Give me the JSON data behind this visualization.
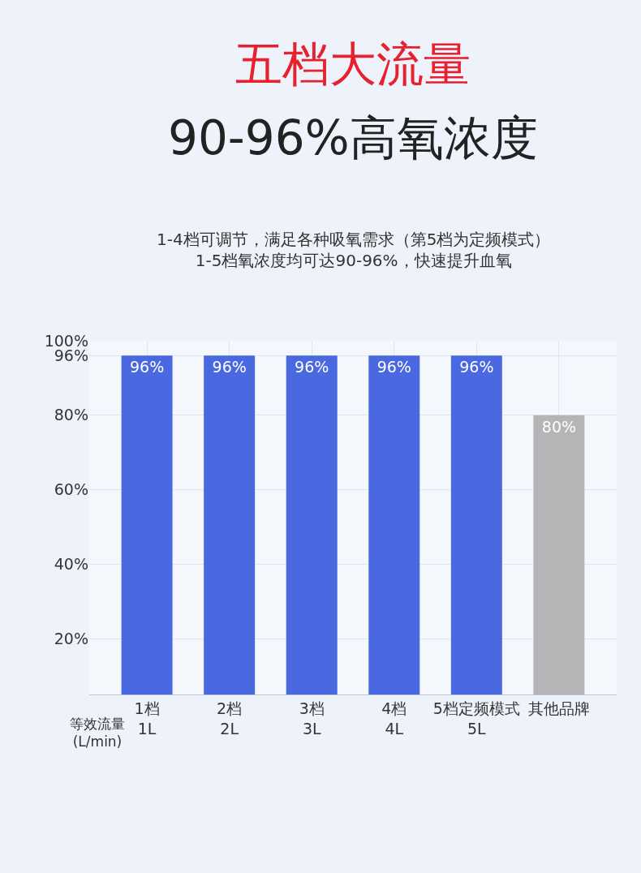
{
  "chart_data": {
    "type": "bar",
    "title": "五档大流量",
    "subtitle": "90-96%高氧浓度",
    "annotations": [
      "1-4档可调节，满足各种吸氧需求（第5档为定频模式）\n1-5档氧浓度均可达90-96%，快速提升血氧",
      "等效流量\n(L/min)"
    ],
    "categories": [
      "1档\n1L",
      "2档\n2L",
      "3档\n3L",
      "4档\n4L",
      "5档定频模式\n5L",
      "其他品牌"
    ],
    "values": [
      96,
      96,
      96,
      96,
      96,
      80
    ],
    "colors": [
      "#4a68df",
      "#4a68df",
      "#4a68df",
      "#4a68df",
      "#4a68df",
      "#b5b5b8"
    ],
    "value_labels": [
      "96%",
      "96%",
      "96%",
      "96%",
      "96%",
      "80%"
    ],
    "ylim": [
      5,
      100
    ],
    "yticks": [
      {
        "value": 20,
        "label": "20%"
      },
      {
        "value": 40,
        "label": "40%"
      },
      {
        "value": 60,
        "label": "60%"
      },
      {
        "value": 80,
        "label": "80%"
      },
      {
        "value": 96,
        "label": "96%"
      },
      {
        "value": 100,
        "label": "100%"
      }
    ],
    "grid": true
  }
}
